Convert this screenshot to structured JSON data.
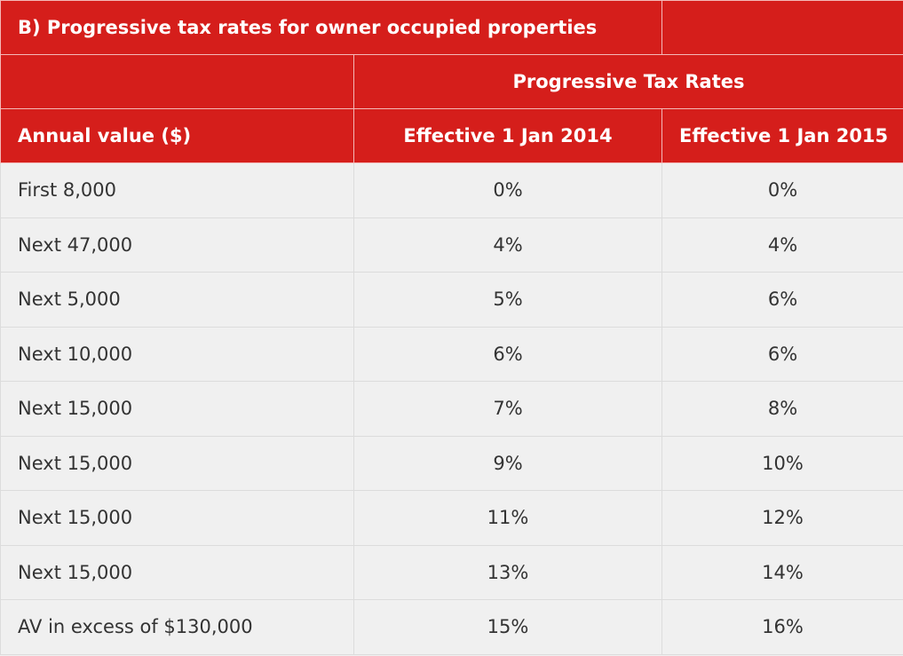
{
  "header": {
    "title": "B) Progressive tax rates for owner occupied properties",
    "group": "Progressive Tax Rates",
    "columns": [
      "Annual value ($)",
      "Effective 1 Jan 2014",
      "Effective 1 Jan 2015"
    ]
  },
  "table": {
    "rows": [
      [
        "First 8,000",
        "0%",
        "0%"
      ],
      [
        "Next 47,000",
        "4%",
        "4%"
      ],
      [
        "Next 5,000",
        "5%",
        "6%"
      ],
      [
        "Next 10,000",
        "6%",
        "6%"
      ],
      [
        "Next 15,000",
        "7%",
        "8%"
      ],
      [
        "Next 15,000",
        "9%",
        "10%"
      ],
      [
        "Next 15,000",
        "11%",
        "12%"
      ],
      [
        "Next 15,000",
        "13%",
        "14%"
      ],
      [
        "AV in excess of $130,000",
        "15%",
        "16%"
      ]
    ]
  }
}
